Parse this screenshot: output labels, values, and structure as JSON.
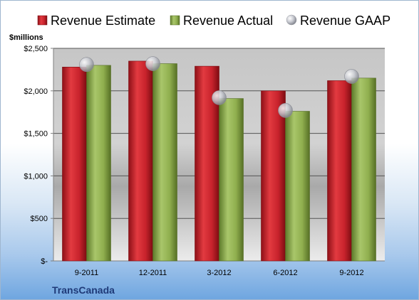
{
  "chart_data": {
    "type": "bar",
    "categories": [
      "9-2011",
      "12-2011",
      "3-2012",
      "6-2012",
      "9-2012"
    ],
    "series": [
      {
        "name": "Revenue Estimate",
        "kind": "bar",
        "color": "#c8232c",
        "values": [
          2280,
          2350,
          2290,
          2000,
          2120
        ]
      },
      {
        "name": "Revenue Actual",
        "kind": "bar",
        "color": "#8fae4e",
        "values": [
          2300,
          2320,
          1910,
          1760,
          2150
        ]
      },
      {
        "name": "Revenue GAAP",
        "kind": "marker",
        "color": "#b9bcc4",
        "values": [
          2310,
          2320,
          1920,
          1770,
          2170
        ]
      }
    ],
    "ylabel": "$millions",
    "ylim": [
      0,
      2500
    ],
    "yticks": [
      0,
      500,
      1000,
      1500,
      2000,
      2500
    ],
    "ytick_labels": [
      "$-",
      "$500",
      "$1,000",
      "$1,500",
      "$2,000",
      "$2,500"
    ],
    "grid": true,
    "legend_position": "top",
    "company": "TransCanada"
  }
}
